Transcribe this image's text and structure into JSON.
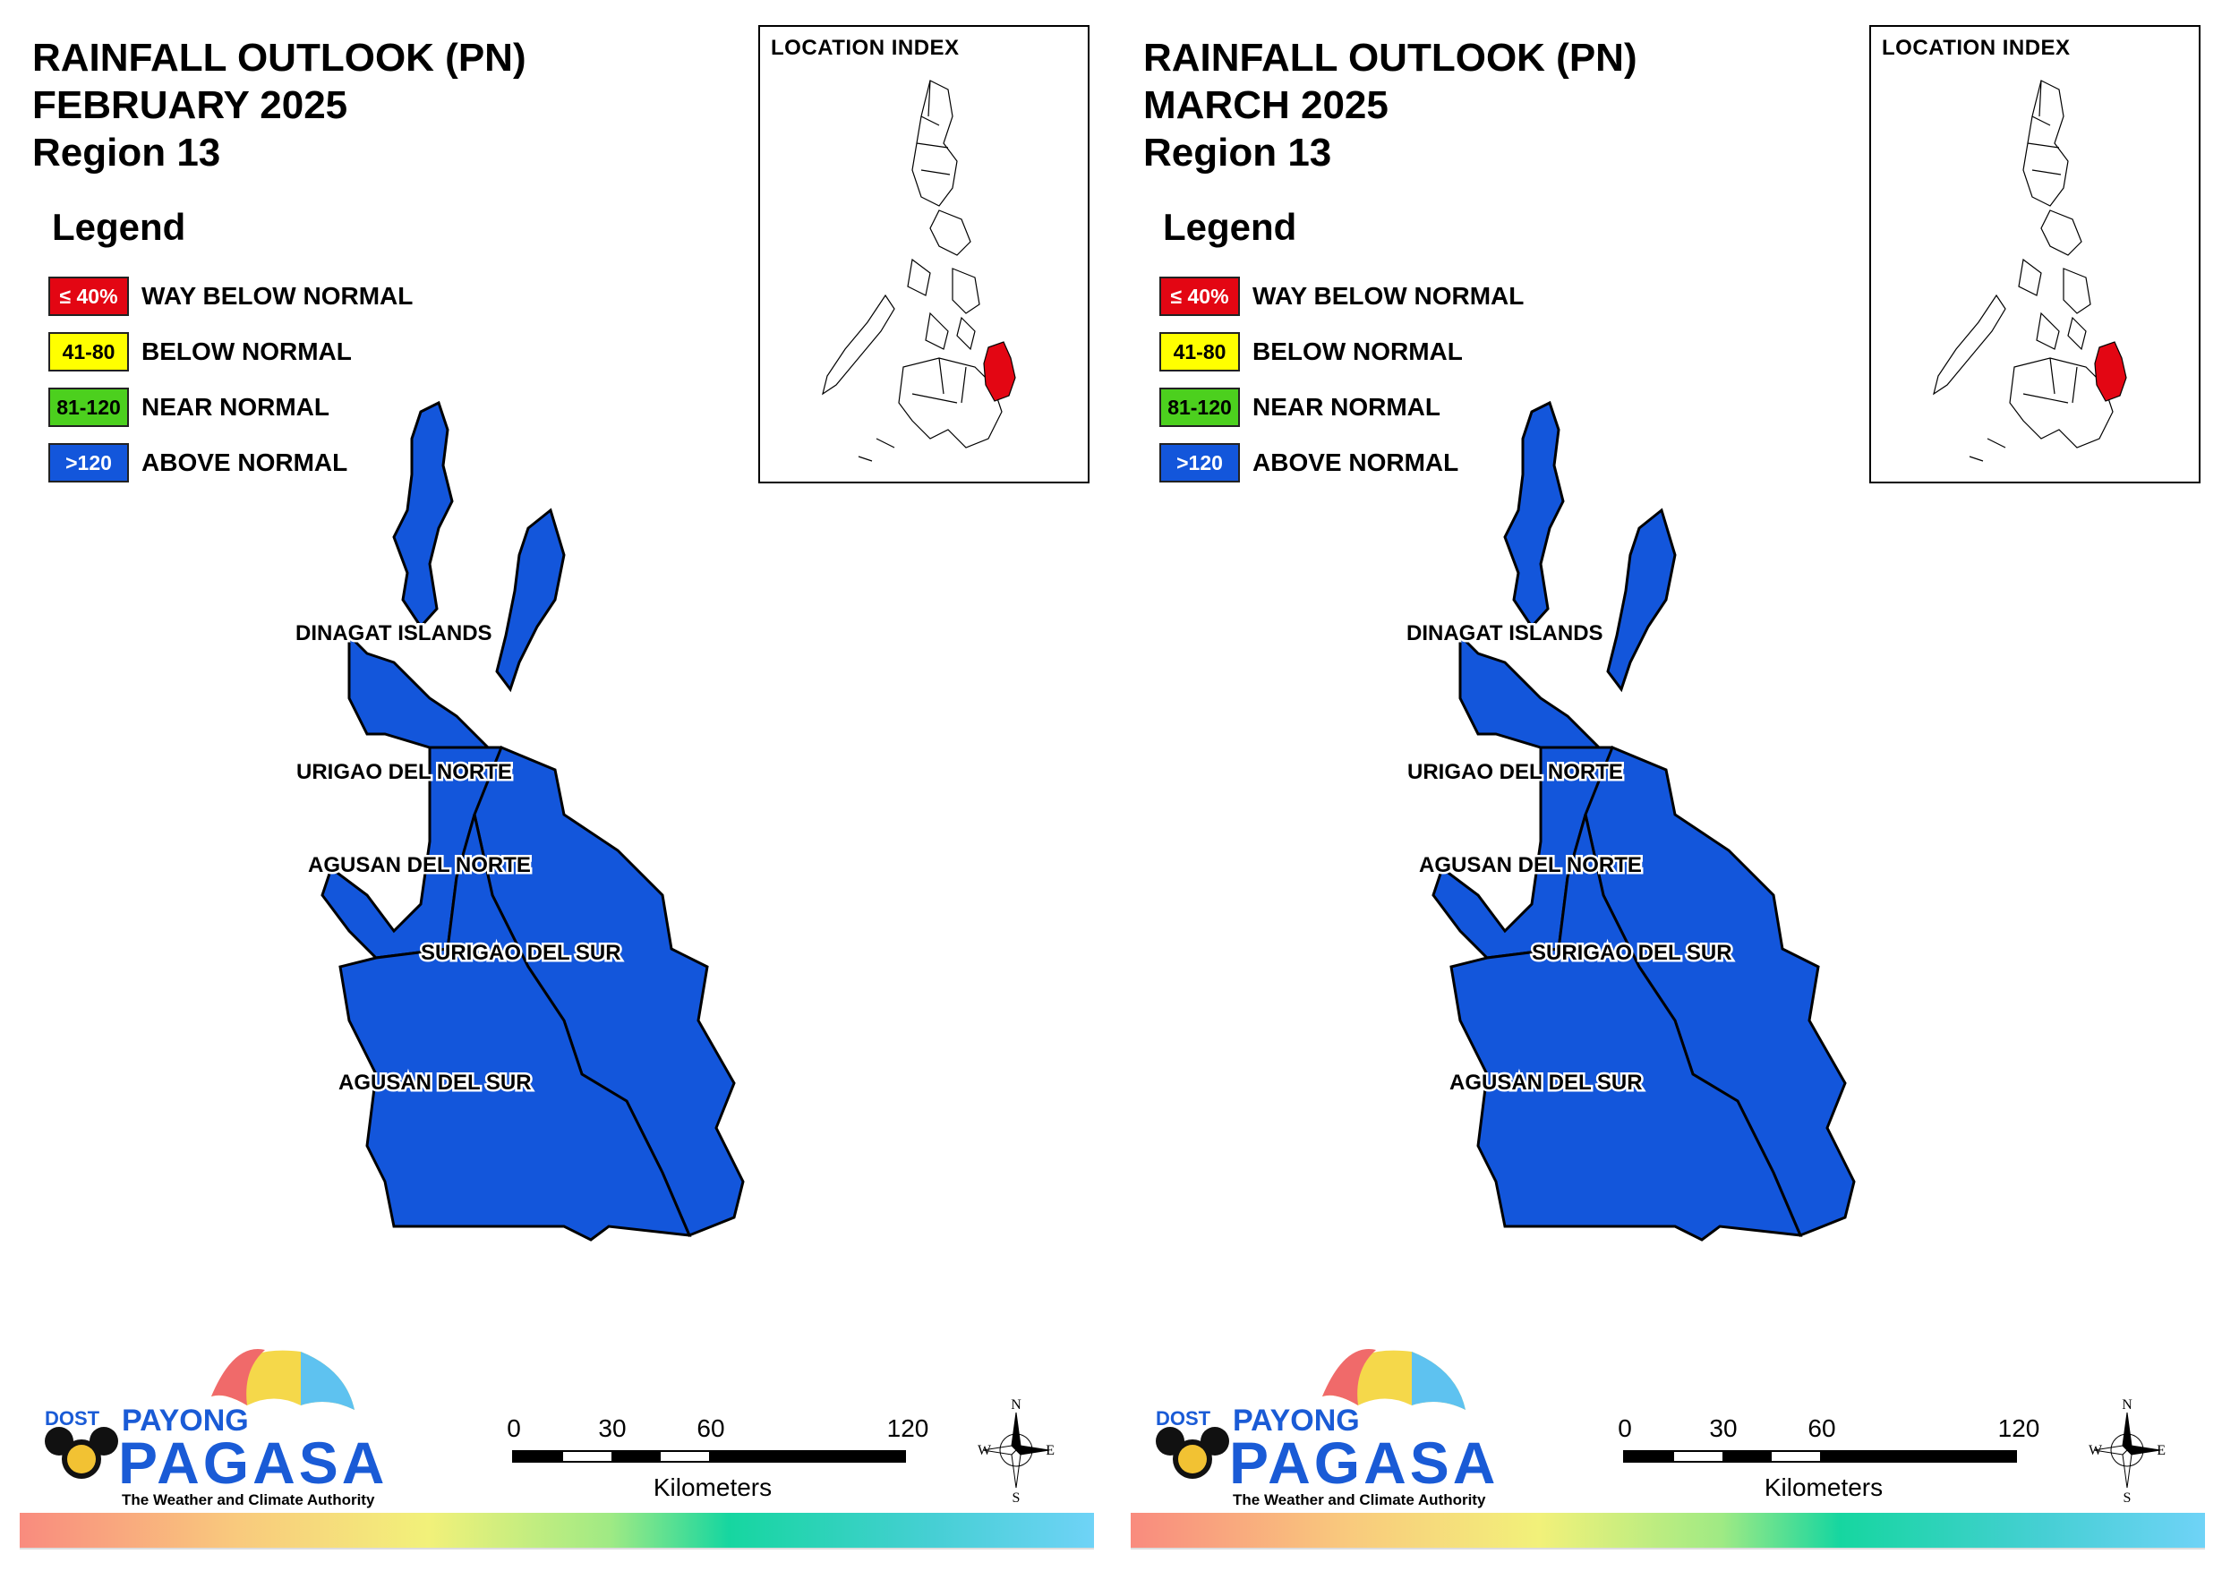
{
  "panels": [
    {
      "title_line1": "RAINFALL OUTLOOK (PN)",
      "title_line2": "FEBRUARY 2025",
      "title_line3": "Region 13"
    },
    {
      "title_line1": "RAINFALL OUTLOOK (PN)",
      "title_line2": "MARCH 2025",
      "title_line3": "Region 13"
    }
  ],
  "legend": {
    "title": "Legend",
    "items": [
      {
        "range": "≤ 40%",
        "label": "WAY BELOW NORMAL",
        "color": "#e30613"
      },
      {
        "range": "41-80",
        "label": "BELOW NORMAL",
        "color": "#ffff00"
      },
      {
        "range": "81-120",
        "label": "NEAR NORMAL",
        "color": "#4cd01e"
      },
      {
        "range": ">120",
        "label": "ABOVE NORMAL",
        "color": "#1356db"
      }
    ]
  },
  "location_index": {
    "title": "LOCATION INDEX",
    "highlight_color": "#e30613"
  },
  "provinces": {
    "dinagat": {
      "name": "DINAGAT ISLANDS",
      "category": "ABOVE NORMAL"
    },
    "surigao_norte": {
      "name": "SURIGAO DEL NORTE",
      "category": "ABOVE NORMAL"
    },
    "agusan_norte": {
      "name": "AGUSAN DEL NORTE",
      "category": "ABOVE NORMAL"
    },
    "surigao_sur": {
      "name": "SURIGAO DEL SUR",
      "category": "ABOVE NORMAL"
    },
    "agusan_sur": {
      "name": "AGUSAN DEL SUR",
      "category": "ABOVE NORMAL"
    }
  },
  "map_fill_color": "#1356db",
  "scale": {
    "ticks": [
      "0",
      "30",
      "60",
      "120"
    ],
    "unit": "Kilometers"
  },
  "compass": {
    "n": "N",
    "s": "S",
    "e": "E",
    "w": "W"
  },
  "logo": {
    "dost": "DOST",
    "payong": "PAYONG",
    "pagasa": "PAGASA",
    "tagline": "The Weather and Climate Authority"
  }
}
